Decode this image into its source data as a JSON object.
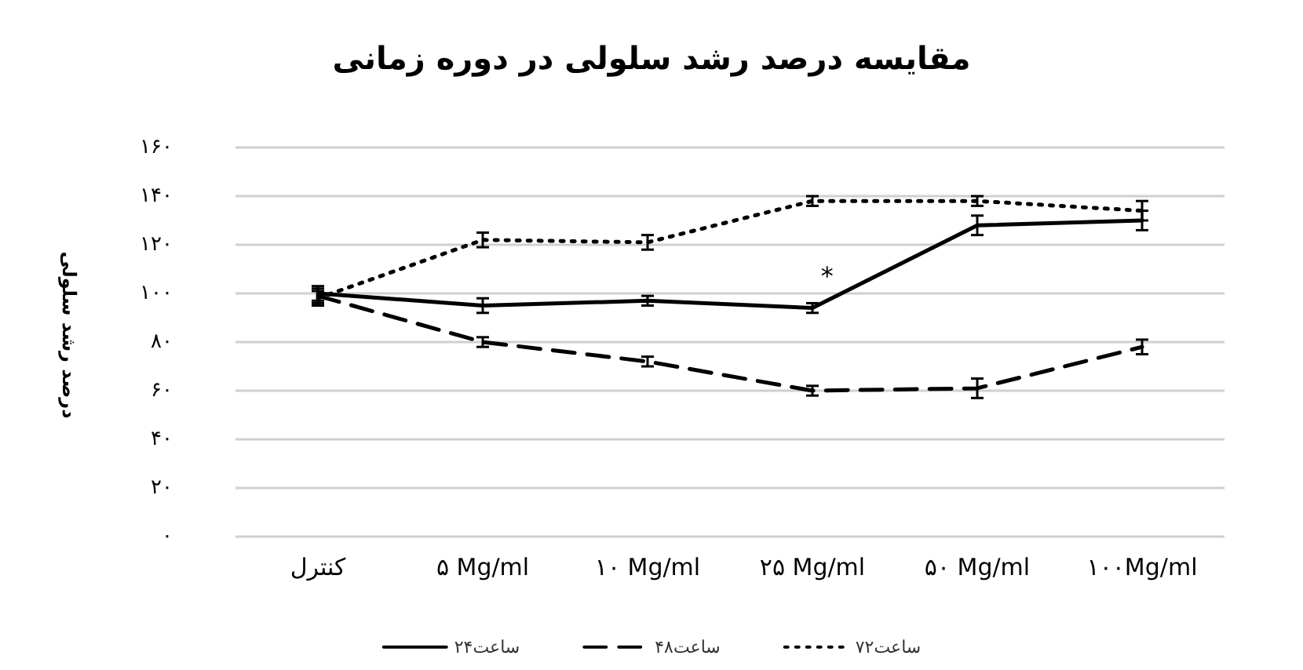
{
  "chart_data": {
    "type": "line",
    "title": "مقایسه درصد رشد سلولی در دوره زمانی",
    "ylabel": "درصد رشد سلولی",
    "categories": [
      "کنترل",
      "۵ Mg/ml",
      "۱۰ Mg/ml",
      "۲۵ Mg/ml",
      "۵۰ Mg/ml",
      "۱۰۰Mg/ml"
    ],
    "series": [
      {
        "name": "۲۴ساعت",
        "color": "#000000",
        "line_style": "solid",
        "values": [
          100,
          95,
          97,
          94,
          128,
          130
        ],
        "errors": [
          3,
          3,
          2,
          2,
          4,
          4
        ]
      },
      {
        "name": "۴۸ساعت",
        "color": "#000000",
        "line_style": "dashed",
        "values": [
          99,
          80,
          72,
          60,
          61,
          78
        ],
        "errors": [
          3,
          2,
          2,
          2,
          4,
          3
        ]
      },
      {
        "name": "۷۲ساعت",
        "color": "#000000",
        "line_style": "dotted",
        "values": [
          98,
          122,
          121,
          138,
          138,
          134
        ],
        "errors": [
          3,
          3,
          3,
          2,
          2,
          4
        ]
      }
    ],
    "ylim": [
      0,
      160
    ],
    "yticks": [
      {
        "value": 0,
        "label": "۰"
      },
      {
        "value": 20,
        "label": "۲۰"
      },
      {
        "value": 40,
        "label": "۴۰"
      },
      {
        "value": 60,
        "label": "۶۰"
      },
      {
        "value": 80,
        "label": "۸۰"
      },
      {
        "value": 100,
        "label": "۱۰۰"
      },
      {
        "value": 120,
        "label": "۱۲۰"
      },
      {
        "value": 140,
        "label": "۱۴۰"
      },
      {
        "value": 160,
        "label": "۱۶۰"
      }
    ],
    "grid": "y",
    "legend": "bottom",
    "marker": "none",
    "annotations": [
      "*"
    ]
  }
}
